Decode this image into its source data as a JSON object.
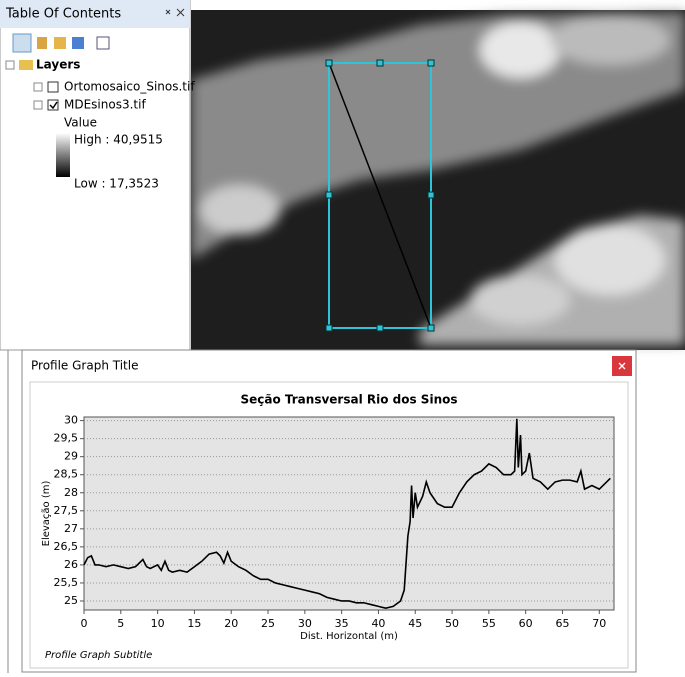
{
  "toc": {
    "title": "Table Of Contents",
    "root": "Layers",
    "layers": [
      "Ortomosaico_Sinos.tif",
      "MDEsinos3.tif"
    ],
    "legend_heading": "Value",
    "high": "High : 40,9515",
    "low": "Low : 17,3523"
  },
  "window": {
    "title": "Profile Graph Title",
    "subtitle": "Profile Graph Subtitle"
  },
  "chart_data": {
    "type": "line",
    "title": "Seção Transversal Rio dos Sinos",
    "x_label": "Dist. Horizontal (m)",
    "y_label": "Elevação (m)",
    "color": "#000000",
    "grid": true,
    "x": [
      0,
      0.5,
      1,
      1.5,
      2,
      3,
      4,
      5,
      6,
      7,
      8,
      8.5,
      9,
      10,
      10.5,
      11,
      11.5,
      12,
      13,
      14,
      15,
      16,
      17,
      18,
      18.5,
      19,
      19.5,
      20,
      21,
      22,
      23,
      24,
      25,
      26,
      27,
      28,
      29,
      30,
      31,
      32,
      33,
      34,
      35,
      36,
      37,
      38,
      39,
      40,
      41,
      42,
      43,
      43.5,
      44,
      44.3,
      44.5,
      44.7,
      45,
      45.3,
      46,
      46.5,
      47,
      48,
      49,
      50,
      51,
      52,
      53,
      54,
      55,
      56,
      57,
      58,
      58.5,
      58.8,
      59,
      59.3,
      59.5,
      60,
      60.5,
      61,
      62,
      63,
      64,
      65,
      66,
      67,
      67.5,
      68,
      69,
      70,
      71,
      71.5
    ],
    "values": [
      26.0,
      26.2,
      26.25,
      26.0,
      26.0,
      25.95,
      26.0,
      25.95,
      25.9,
      25.95,
      26.15,
      25.95,
      25.9,
      26.0,
      25.85,
      26.1,
      25.85,
      25.8,
      25.85,
      25.8,
      25.95,
      26.1,
      26.3,
      26.35,
      26.25,
      26.05,
      26.35,
      26.1,
      25.95,
      25.85,
      25.7,
      25.6,
      25.6,
      25.5,
      25.45,
      25.4,
      25.35,
      25.3,
      25.25,
      25.2,
      25.1,
      25.05,
      25.0,
      25.0,
      24.95,
      24.95,
      24.9,
      24.85,
      24.8,
      24.85,
      25.0,
      25.3,
      26.8,
      27.2,
      28.2,
      27.3,
      28.0,
      27.6,
      27.9,
      28.3,
      28.0,
      27.7,
      27.6,
      27.6,
      28.0,
      28.3,
      28.5,
      28.6,
      28.8,
      28.7,
      28.5,
      28.5,
      28.6,
      30.05,
      28.7,
      29.6,
      28.5,
      28.6,
      29.1,
      28.4,
      28.3,
      28.1,
      28.3,
      28.35,
      28.35,
      28.3,
      28.6,
      28.1,
      28.2,
      28.1,
      28.3,
      28.4
    ],
    "xlim": [
      0,
      72
    ],
    "xticks": [
      0,
      5,
      10,
      15,
      20,
      25,
      30,
      35,
      40,
      45,
      50,
      55,
      60,
      65,
      70
    ],
    "ylim": [
      24.75,
      30.1
    ],
    "yticks": [
      {
        "value": 25,
        "label": "25"
      },
      {
        "value": 25.5,
        "label": "25,5"
      },
      {
        "value": 26,
        "label": "26"
      },
      {
        "value": 26.5,
        "label": "26,5"
      },
      {
        "value": 27,
        "label": "27"
      },
      {
        "value": 27.5,
        "label": "27,5"
      },
      {
        "value": 28,
        "label": "28"
      },
      {
        "value": 28.5,
        "label": "28,5"
      },
      {
        "value": 29,
        "label": "29"
      },
      {
        "value": 29.5,
        "label": "29,5"
      },
      {
        "value": 30,
        "label": "30"
      }
    ]
  }
}
